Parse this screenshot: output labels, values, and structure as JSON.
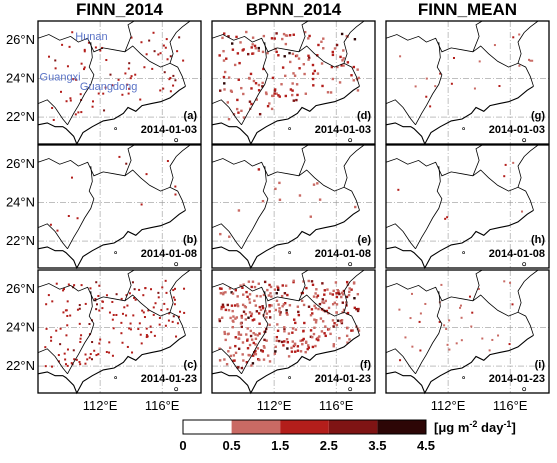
{
  "chart_data": {
    "type": "map-grid",
    "columns": [
      {
        "title": "FINN_2014",
        "key": "finn2014",
        "density": [
          0.25,
          0.03,
          0.45
        ]
      },
      {
        "title": "BPNN_2014",
        "key": "bpnn2014",
        "density": [
          0.45,
          0.04,
          1.0
        ]
      },
      {
        "title": "FINN_MEAN",
        "key": "finnmean",
        "density": [
          0.05,
          0.02,
          0.1
        ]
      }
    ],
    "rows": [
      {
        "date": "2014-01-03"
      },
      {
        "date": "2014-01-08"
      },
      {
        "date": "2014-01-23"
      }
    ],
    "panel_labels": [
      "(a)",
      "(d)",
      "(g)",
      "(b)",
      "(e)",
      "(h)",
      "(c)",
      "(f)",
      "(i)"
    ],
    "y_ticks": [
      {
        "value": 26,
        "label": "26°N"
      },
      {
        "value": 24,
        "label": "24°N"
      },
      {
        "value": 22,
        "label": "22°N"
      }
    ],
    "x_ticks": [
      {
        "value": 112,
        "label": "112°E"
      },
      {
        "value": 116,
        "label": "116°E"
      }
    ],
    "lat_range": [
      20.6,
      27.0
    ],
    "lon_range": [
      108.0,
      118.5
    ],
    "provinces": [
      "Hunan",
      "Guangxi",
      "Guangdong"
    ],
    "colorbar": {
      "ticks": [
        "0",
        "0.5",
        "1.5",
        "2.5",
        "3.5",
        "4.5"
      ],
      "colors": [
        "#ffffff",
        "#c96a64",
        "#b31e1b",
        "#7f1414",
        "#2d0606"
      ],
      "unit_main": "[μg m",
      "unit_sup1": "-2",
      "unit_mid": " day",
      "unit_sup2": "-1",
      "unit_end": "]"
    }
  }
}
